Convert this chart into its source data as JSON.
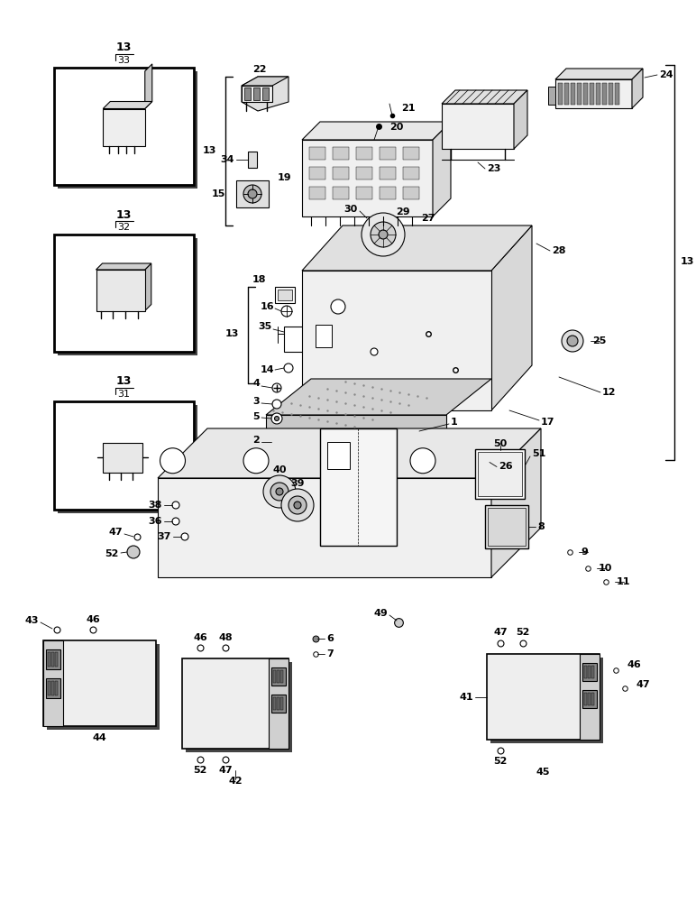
{
  "bg_color": "#ffffff",
  "line_color": "#000000",
  "fig_width": 7.72,
  "fig_height": 10.0
}
